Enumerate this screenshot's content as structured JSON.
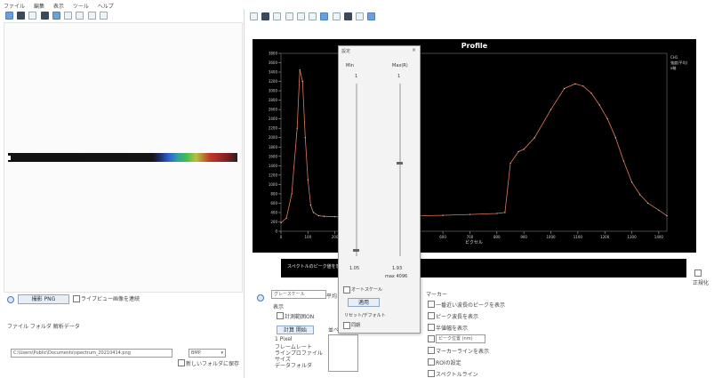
{
  "menu": {
    "items": [
      "ファイル",
      "編集",
      "表示",
      "ツール",
      "ヘルプ"
    ]
  },
  "left_toolbar": {
    "icons": [
      "folder-open-icon",
      "save-icon",
      "dropdown-icon",
      "grid-icon",
      "image-icon",
      "pen-icon",
      "zoom-icon",
      "crop-icon",
      "settings-icon"
    ]
  },
  "left_bottom": {
    "mode_button": "撮影 PNG",
    "mode_right_label": "ライブビュー画像を連続",
    "tabs_label": "ファイル  フォルダ  解析データ",
    "path_value": "C:\\Users\\Public\\Documents\\spectrum_20210414.png",
    "format_select": "BMP",
    "save_checkbox_label": "新しいフォルダに保存"
  },
  "right_toolbar": {
    "icons": [
      "arrow-icon",
      "line-icon",
      "rect-icon",
      "pen-icon",
      "eraser-icon",
      "copy-icon",
      "paste-icon",
      "camera-icon",
      "chart-icon",
      "info-icon",
      "settings-icon"
    ]
  },
  "chart_data": {
    "type": "line",
    "title": "Profile",
    "xlabel": "ピクセル",
    "x_ticks": [
      "0",
      "100",
      "200",
      "300",
      "400",
      "500",
      "600",
      "700",
      "800",
      "900",
      "1000",
      "1100",
      "1200",
      "1300",
      "1400"
    ],
    "y_ticks": [
      "0",
      "200",
      "400",
      "600",
      "800",
      "1000",
      "1200",
      "1400",
      "1600",
      "1800",
      "2000",
      "2200",
      "2400",
      "2600",
      "2800",
      "3000",
      "3200",
      "3400",
      "3600",
      "3800"
    ],
    "xlim": [
      0,
      1430
    ],
    "ylim": [
      0,
      3800
    ],
    "legend": "top-right",
    "legend_text": "CH1\n強度(平均)\nx軸",
    "series": [
      {
        "color": "#e07a5a",
        "x": [
          0,
          20,
          40,
          60,
          70,
          80,
          90,
          100,
          110,
          120,
          140,
          160,
          200,
          300,
          400,
          500,
          600,
          700,
          800,
          830,
          850,
          880,
          900,
          940,
          1000,
          1050,
          1090,
          1120,
          1150,
          1180,
          1210,
          1240,
          1270,
          1300,
          1330,
          1360,
          1400,
          1430
        ],
        "y": [
          180,
          280,
          800,
          2200,
          3450,
          3200,
          2000,
          1100,
          560,
          400,
          330,
          320,
          310,
          300,
          310,
          330,
          340,
          360,
          380,
          400,
          1450,
          1700,
          1750,
          2000,
          2600,
          3050,
          3150,
          3100,
          2950,
          2700,
          2400,
          2000,
          1500,
          1050,
          780,
          600,
          450,
          330
        ]
      }
    ]
  },
  "roi": {
    "label": "スペクトルのピーク値を表示"
  },
  "dialog": {
    "title": "設定",
    "close": "×",
    "col_left": "Min",
    "col_right": "Max(R)",
    "val_left": "1",
    "val_right": "1",
    "bottom_left": "1.05",
    "bottom_right": "1.93",
    "bottom_right2": "max 4096",
    "checkbox_auto": "オートスケール",
    "apply_button": "適用",
    "reset_label": "リセット/デフォルト",
    "checkbox_sync": "同期"
  },
  "right_bottom": {
    "dropdown_value": "グレースケール",
    "tab_label": "表示",
    "group_label": "平均",
    "checkbox_main": "計測範囲ON",
    "button_small": "計算 開始",
    "list_items": [
      "1 Pixel",
      "フレームレート",
      "ラインプロファイル",
      "サイズ",
      "データフォルダ"
    ],
    "side_label": "並べ",
    "panel_title": "マーカー",
    "options": [
      "一番近い波長のピークを表示",
      "ピーク波長を表示",
      "半値幅を表示",
      "ピーク位置 (nm)",
      "マーカーラインを表示",
      "ROIの設定",
      "スペクトルライン"
    ],
    "corner_checkbox": "正規化"
  }
}
